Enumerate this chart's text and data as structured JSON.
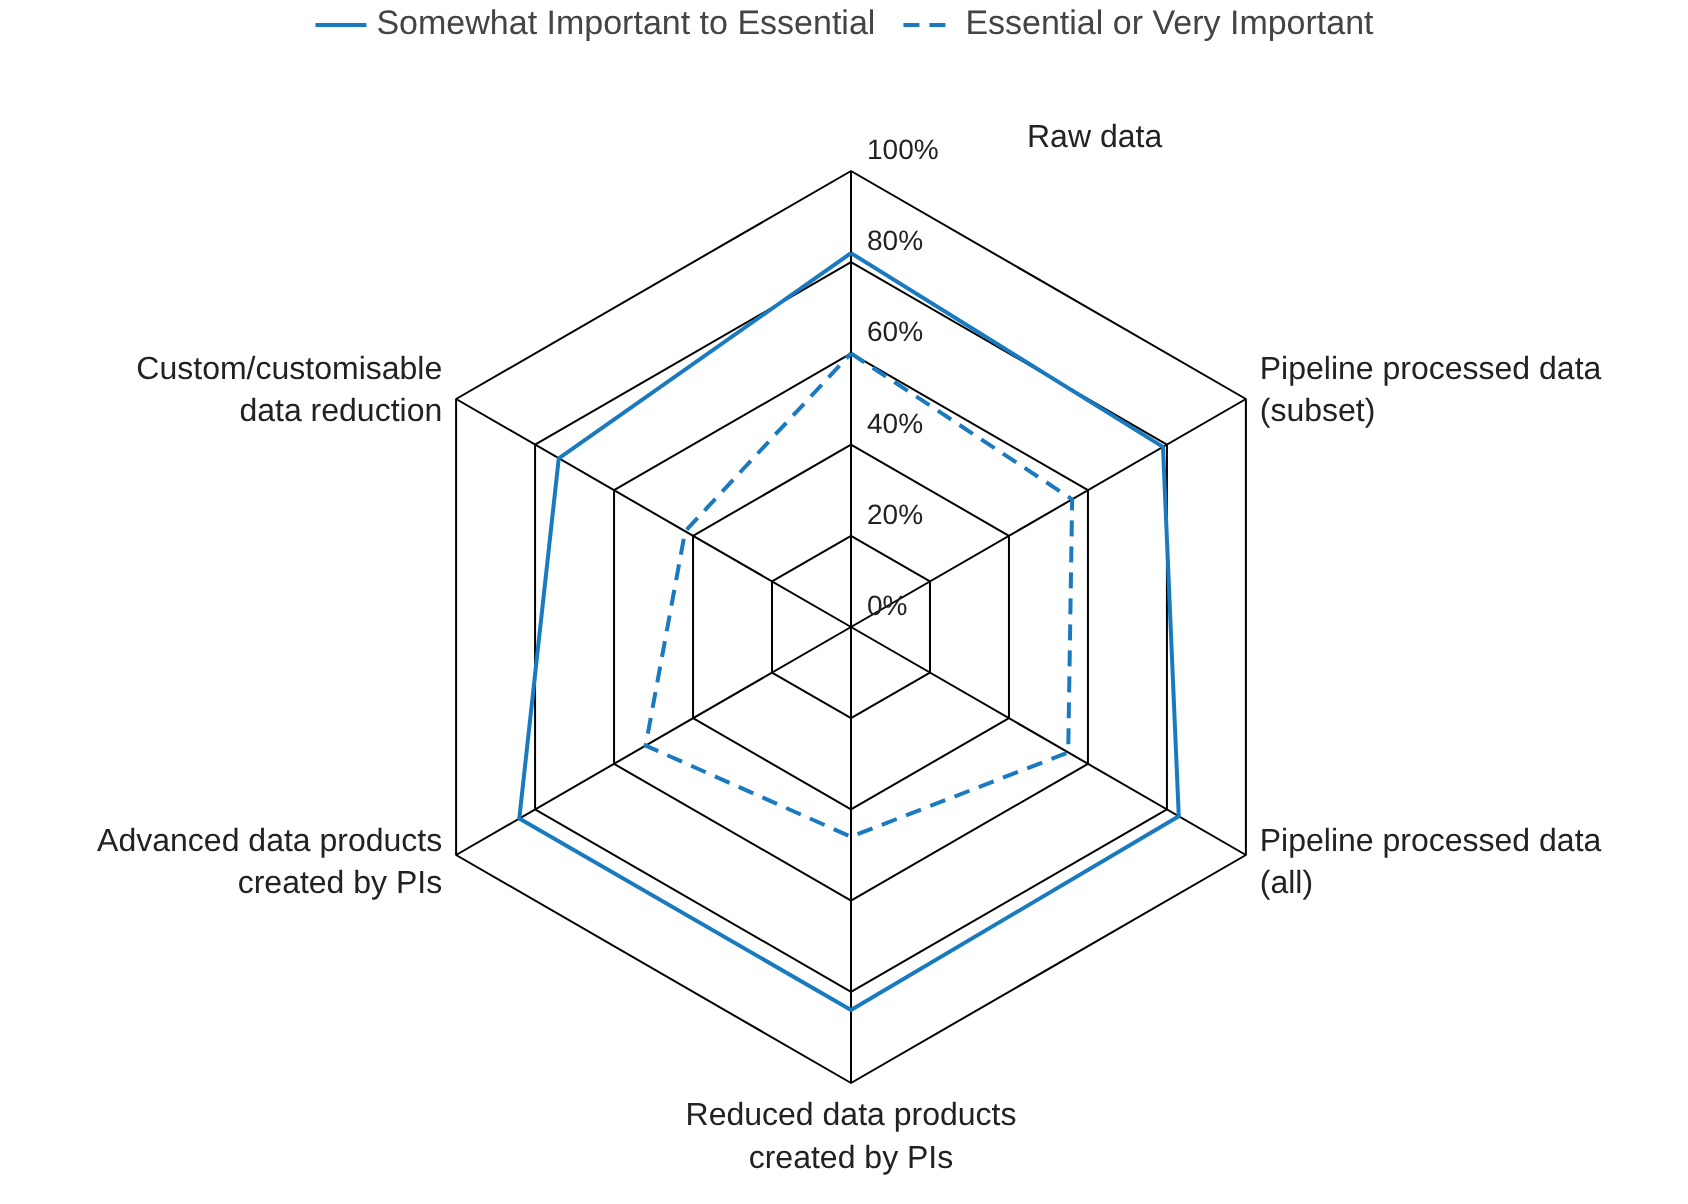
{
  "chart_data": {
    "type": "radar",
    "categories": [
      "Raw data",
      "Pipeline processed data\n(subset)",
      "Pipeline processed data\n(all)",
      "Reduced data products\ncreated by PIs",
      "Advanced data products\ncreated by PIs",
      "Custom/customisable\ndata reduction"
    ],
    "series": [
      {
        "name": "Somewhat Important to Essential",
        "color": "#1a7abf",
        "line_style": "solid",
        "values": [
          82,
          79,
          83,
          84,
          84,
          74
        ]
      },
      {
        "name": "Essential or Very Important",
        "color": "#1a7abf",
        "line_style": "dashed",
        "values": [
          60,
          56,
          55,
          46,
          52,
          42
        ]
      }
    ],
    "ylim": [
      0,
      100
    ],
    "yticks": [
      {
        "value": 0,
        "label": "0%"
      },
      {
        "value": 20,
        "label": "20%"
      },
      {
        "value": 40,
        "label": "40%"
      },
      {
        "value": 60,
        "label": "60%"
      },
      {
        "value": 80,
        "label": "80%"
      },
      {
        "value": 100,
        "label": "100%"
      }
    ],
    "legend": "top",
    "marker": "none"
  }
}
